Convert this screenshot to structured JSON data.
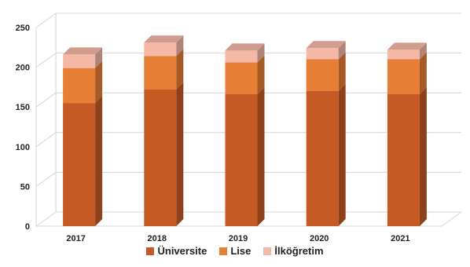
{
  "chart_data": {
    "type": "bar",
    "stacked": true,
    "style": "3d",
    "categories": [
      "2017",
      "2018",
      "2019",
      "2020",
      "2021"
    ],
    "series": [
      {
        "name": "Üniversite",
        "values": [
          155,
          172,
          166,
          170,
          166
        ],
        "color": "#c55a24"
      },
      {
        "name": "Lise",
        "values": [
          44,
          42,
          40,
          40,
          44
        ],
        "color": "#e67e35"
      },
      {
        "name": "İlköğretim",
        "values": [
          17,
          17,
          15,
          14,
          12
        ],
        "color": "#f5b8a6"
      }
    ],
    "ylim": [
      0,
      250
    ],
    "yticks": [
      0,
      50,
      100,
      150,
      200,
      250
    ],
    "grid": true,
    "legend_position": "bottom",
    "title": "",
    "xlabel": "",
    "ylabel": ""
  }
}
